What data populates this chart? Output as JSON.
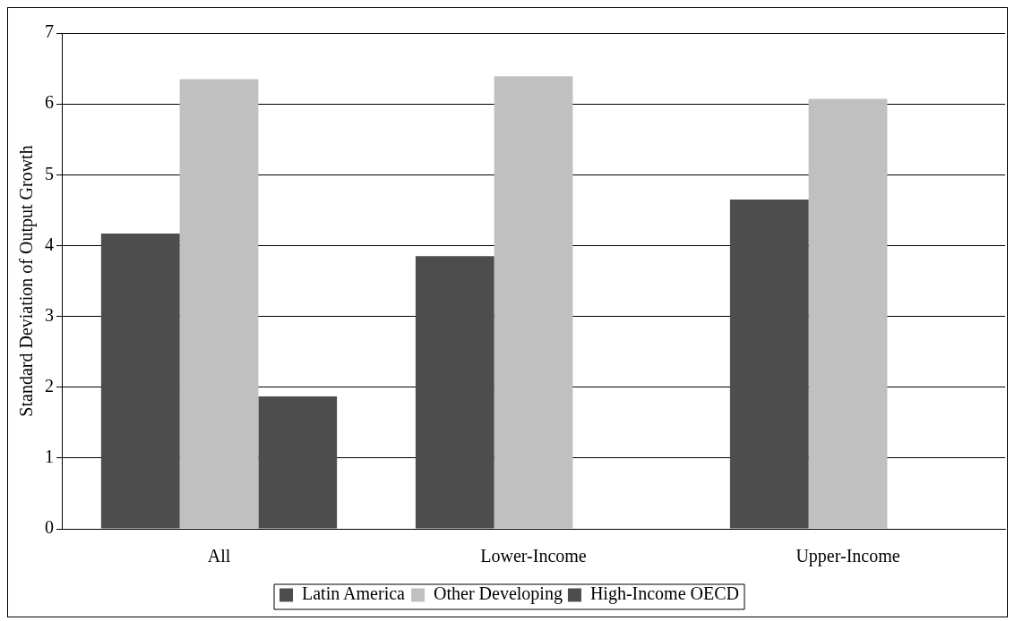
{
  "chart_data": {
    "type": "bar",
    "ylabel": "Standard Deviation of Output Growth",
    "categories": [
      "All",
      "Lower-Income",
      "Upper-Income"
    ],
    "series": [
      {
        "name": "Latin America",
        "color": "#4d4d4d",
        "values": [
          4.17,
          3.85,
          4.65
        ]
      },
      {
        "name": "Other Developing",
        "color": "#c0c0c0",
        "values": [
          6.35,
          6.39,
          6.07
        ]
      },
      {
        "name": "High-Income OECD",
        "color": "#4d4d4d",
        "values": [
          1.87,
          null,
          null
        ]
      }
    ],
    "ylim": [
      0,
      7
    ],
    "yticks": [
      0,
      1,
      2,
      3,
      4,
      5,
      6,
      7
    ],
    "grid": "y",
    "legend": "bottom"
  }
}
